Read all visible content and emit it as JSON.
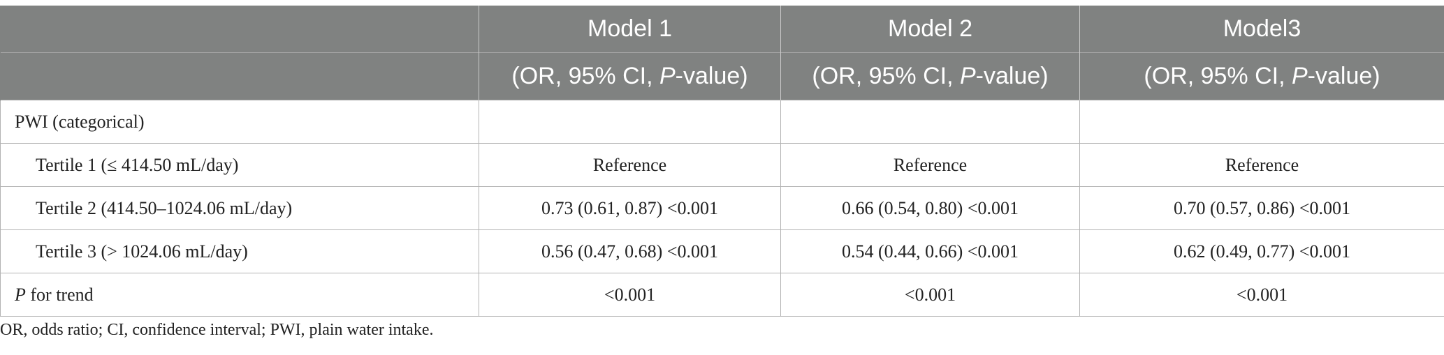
{
  "headers": {
    "row1": [
      "",
      "Model 1",
      "Model 2",
      "Model3"
    ],
    "row2_prefix": "(OR, 95% CI, ",
    "row2_italic": "P",
    "row2_suffix": "-value)"
  },
  "rows": [
    {
      "label": "PWI (categorical)",
      "cells": [
        "",
        "",
        ""
      ]
    },
    {
      "label": "Tertile 1 (≤ 414.50 mL/day)",
      "cells": [
        "Reference",
        "Reference",
        "Reference"
      ]
    },
    {
      "label": "Tertile 2 (414.50–1024.06 mL/day)",
      "cells": [
        "0.73 (0.61, 0.87) <0.001",
        "0.66 (0.54, 0.80) <0.001",
        "0.70 (0.57, 0.86) <0.001"
      ]
    },
    {
      "label": "Tertile 3 (> 1024.06 mL/day)",
      "cells": [
        "0.56 (0.47, 0.68) <0.001",
        "0.54 (0.44, 0.66) <0.001",
        "0.62 (0.49, 0.77) <0.001"
      ]
    },
    {
      "label_italic": "P",
      "label_rest": " for trend",
      "cells": [
        "<0.001",
        "<0.001",
        "<0.001"
      ]
    }
  ],
  "footnote": "OR, odds ratio; CI, confidence interval; PWI, plain water intake."
}
